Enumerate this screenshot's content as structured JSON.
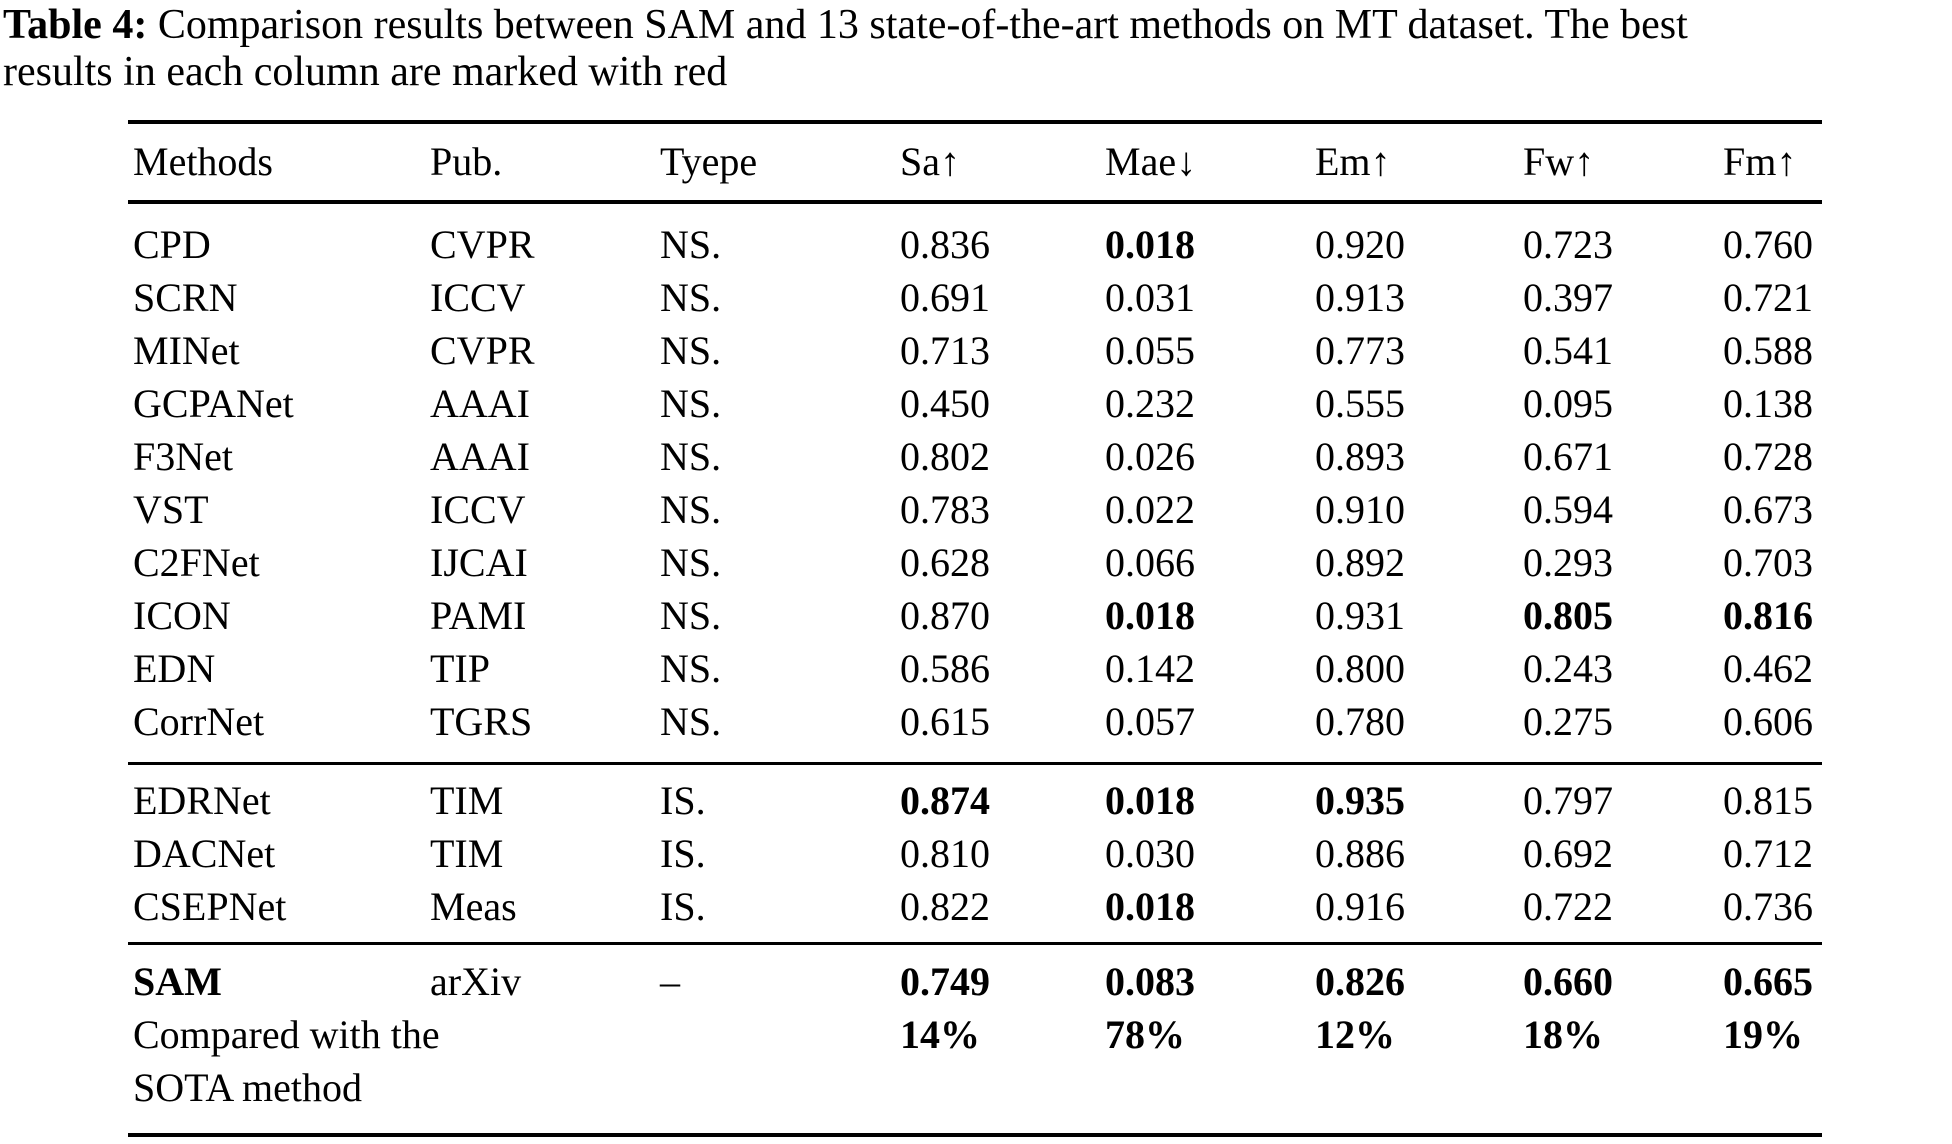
{
  "caption": {
    "label": "Table 4:",
    "line1": " Comparison results between SAM and 13 state-of-the-art methods on MT dataset. The best",
    "line2": "results in each column are marked with red"
  },
  "text_color": "#000000",
  "table": {
    "columns": [
      {
        "key": "methods",
        "label": "Methods"
      },
      {
        "key": "pub",
        "label": "Pub."
      },
      {
        "key": "type",
        "label": "Tyepe"
      },
      {
        "key": "sa",
        "label": "Sa↑"
      },
      {
        "key": "mae",
        "label": "Mae↓"
      },
      {
        "key": "em",
        "label": "Em↑"
      },
      {
        "key": "fw",
        "label": "Fw↑"
      },
      {
        "key": "fm",
        "label": "Fm↑"
      }
    ],
    "sections": [
      {
        "name": "non-salient-methods",
        "rows": [
          [
            "CPD",
            "CVPR",
            "NS.",
            "0.836",
            {
              "text": "0.018",
              "bold": true
            },
            "0.920",
            "0.723",
            "0.760"
          ],
          [
            "SCRN",
            "ICCV",
            "NS.",
            "0.691",
            "0.031",
            "0.913",
            "0.397",
            "0.721"
          ],
          [
            "MINet",
            "CVPR",
            "NS.",
            "0.713",
            "0.055",
            "0.773",
            "0.541",
            "0.588"
          ],
          [
            "GCPANet",
            "AAAI",
            "NS.",
            "0.450",
            "0.232",
            "0.555",
            "0.095",
            "0.138"
          ],
          [
            "F3Net",
            "AAAI",
            "NS.",
            "0.802",
            "0.026",
            "0.893",
            "0.671",
            "0.728"
          ],
          [
            "VST",
            "ICCV",
            "NS.",
            "0.783",
            "0.022",
            "0.910",
            "0.594",
            "0.673"
          ],
          [
            "C2FNet",
            "IJCAI",
            "NS.",
            "0.628",
            "0.066",
            "0.892",
            "0.293",
            "0.703"
          ],
          [
            "ICON",
            "PAMI",
            "NS.",
            "0.870",
            {
              "text": "0.018",
              "bold": true
            },
            "0.931",
            {
              "text": "0.805",
              "bold": true
            },
            {
              "text": "0.816",
              "bold": true
            }
          ],
          [
            "EDN",
            "TIP",
            "NS.",
            "0.586",
            "0.142",
            "0.800",
            "0.243",
            "0.462"
          ],
          [
            "CorrNet",
            "TGRS",
            "NS.",
            "0.615",
            "0.057",
            "0.780",
            "0.275",
            "0.606"
          ]
        ]
      },
      {
        "name": "industrial-methods",
        "rows": [
          [
            "EDRNet",
            "TIM",
            "IS.",
            {
              "text": "0.874",
              "bold": true
            },
            {
              "text": "0.018",
              "bold": true
            },
            {
              "text": "0.935",
              "bold": true
            },
            "0.797",
            "0.815"
          ],
          [
            "DACNet",
            "TIM",
            "IS.",
            "0.810",
            "0.030",
            "0.886",
            "0.692",
            "0.712"
          ],
          [
            "CSEPNet",
            "Meas",
            "IS.",
            "0.822",
            {
              "text": "0.018",
              "bold": true
            },
            "0.916",
            "0.722",
            "0.736"
          ]
        ]
      },
      {
        "name": "sam-comparison",
        "rows": [
          [
            {
              "text": "SAM",
              "bold": true
            },
            "arXiv",
            "–",
            {
              "text": "0.749",
              "bold": true
            },
            {
              "text": "0.083",
              "bold": true
            },
            {
              "text": "0.826",
              "bold": true
            },
            {
              "text": "0.660",
              "bold": true
            },
            {
              "text": "0.665",
              "bold": true
            }
          ],
          [
            "Compared with the",
            "",
            "",
            {
              "text": "14%",
              "bold": true
            },
            {
              "text": "78%",
              "bold": true
            },
            {
              "text": "12%",
              "bold": true
            },
            {
              "text": "18%",
              "bold": true
            },
            {
              "text": "19%",
              "bold": true
            }
          ],
          [
            "SOTA method",
            "",
            "",
            "",
            "",
            "",
            "",
            ""
          ]
        ]
      }
    ]
  }
}
